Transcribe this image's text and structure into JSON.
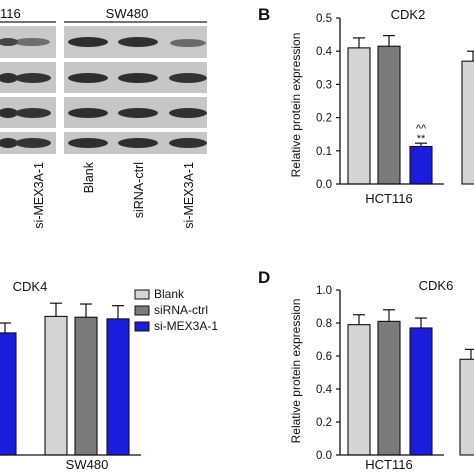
{
  "blot": {
    "cell_lines": [
      "116",
      "SW480"
    ],
    "lanes": [
      "Blank",
      "siRNA-ctrl",
      "si-MEX3A-1"
    ],
    "left_lanes": [
      "si-MEX3A-1"
    ]
  },
  "colors": {
    "blank": "#d4d4d4",
    "ctrl": "#7b7b7b",
    "mex": "#1c1cdc"
  },
  "chart_data": [
    {
      "id": "B",
      "type": "bar",
      "panel_label": "B",
      "title": "CDK2",
      "ylabel": "Relative protein expression",
      "ylim": [
        0,
        0.5
      ],
      "yticks": [
        "0.0",
        "0.1",
        "0.2",
        "0.3",
        "0.4",
        "0.5"
      ],
      "group": "HCT116",
      "values": [
        0.41,
        0.415,
        0.113
      ],
      "errors": [
        0.03,
        0.032,
        0.01
      ],
      "annotation": [
        "^^",
        "**"
      ],
      "clipped_values": [
        0.37
      ]
    },
    {
      "id": "C",
      "type": "bar",
      "title": "CDK4",
      "legend": [
        "Blank",
        "siRNA-ctrl",
        "si-MEX3A-1"
      ],
      "group": "SW480",
      "values": [
        0.84,
        0.835,
        0.825
      ],
      "errors": [
        0.08,
        0.08,
        0.08
      ],
      "clipped_values": [
        0.74
      ]
    },
    {
      "id": "D",
      "type": "bar",
      "panel_label": "D",
      "title": "CDK6",
      "ylabel": "Relative protein expression",
      "ylim": [
        0,
        1.0
      ],
      "yticks": [
        "0.0",
        "0.2",
        "0.4",
        "0.6",
        "0.8",
        "1.0"
      ],
      "group": "HCT116",
      "values": [
        0.79,
        0.81,
        0.77
      ],
      "errors": [
        0.06,
        0.07,
        0.06
      ],
      "clipped_values": [
        0.58
      ]
    }
  ]
}
